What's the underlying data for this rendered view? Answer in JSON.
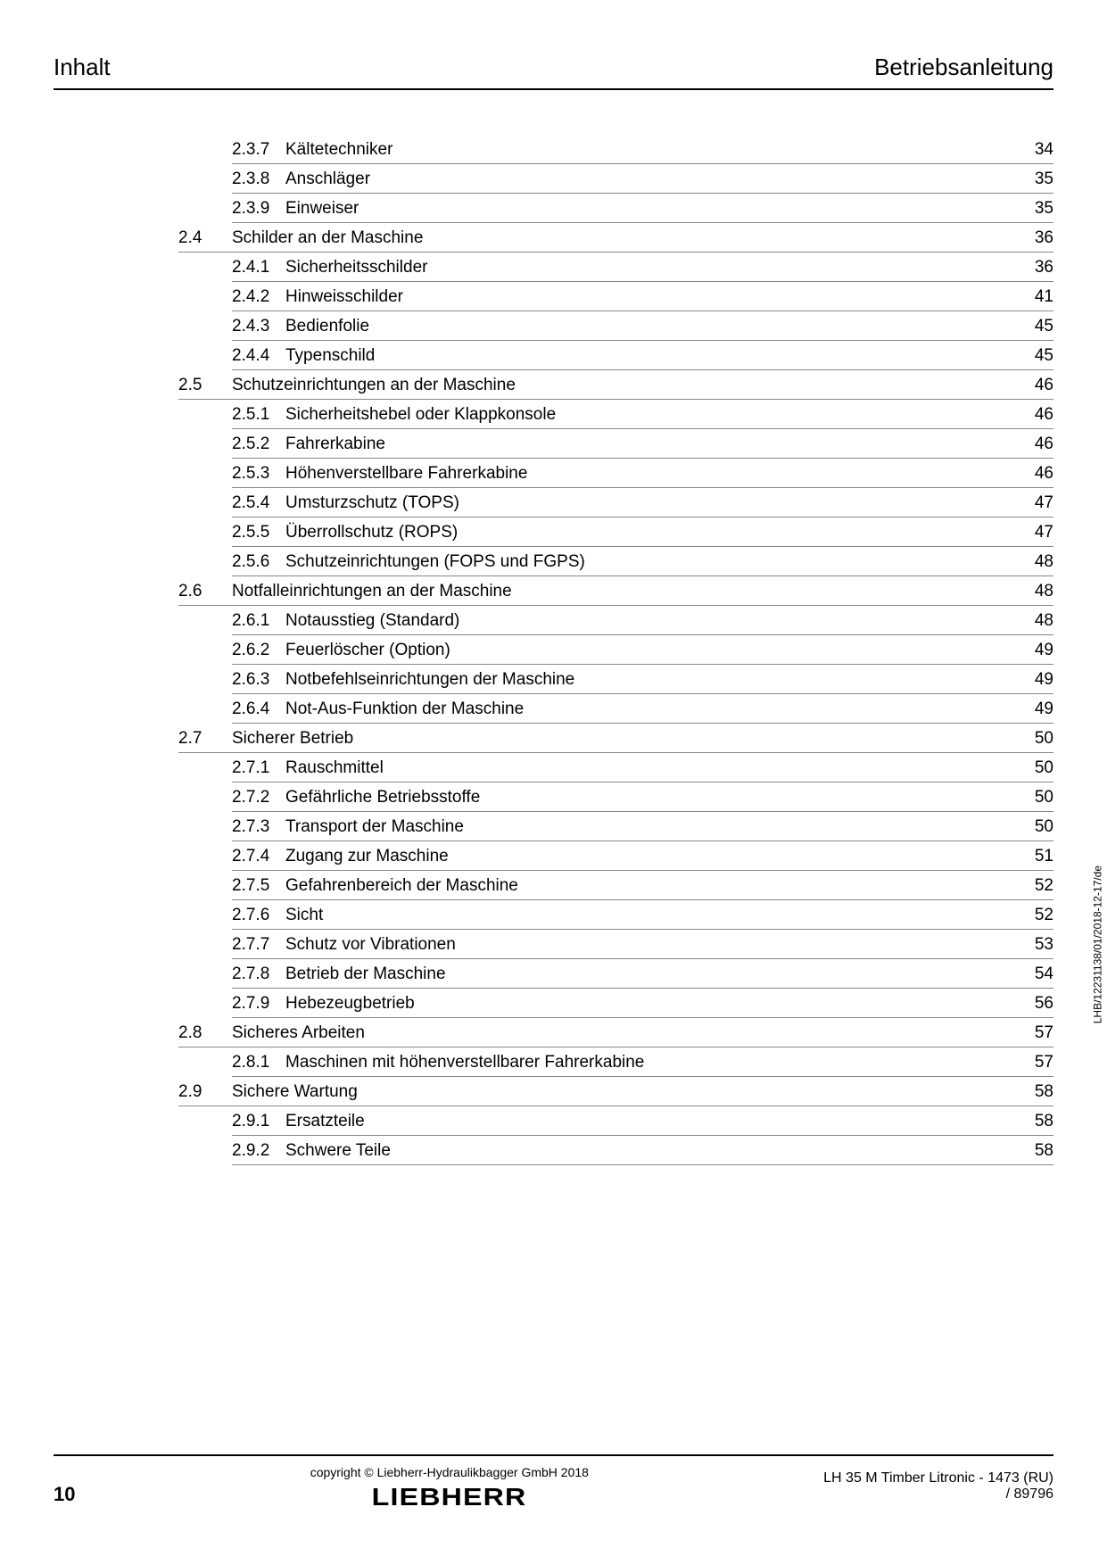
{
  "header": {
    "left": "Inhalt",
    "right": "Betriebsanleitung"
  },
  "toc": [
    {
      "type": "sub",
      "num": "2.3.7",
      "title": "Kältetechniker",
      "page": "34"
    },
    {
      "type": "sub",
      "num": "2.3.8",
      "title": "Anschläger",
      "page": "35"
    },
    {
      "type": "sub",
      "num": "2.3.9",
      "title": "Einweiser",
      "page": "35"
    },
    {
      "type": "sec",
      "num": "2.4",
      "title": "Schilder an der Maschine",
      "page": "36"
    },
    {
      "type": "sub",
      "num": "2.4.1",
      "title": "Sicherheitsschilder",
      "page": "36"
    },
    {
      "type": "sub",
      "num": "2.4.2",
      "title": "Hinweisschilder",
      "page": "41"
    },
    {
      "type": "sub",
      "num": "2.4.3",
      "title": "Bedienfolie",
      "page": "45"
    },
    {
      "type": "sub",
      "num": "2.4.4",
      "title": "Typenschild",
      "page": "45"
    },
    {
      "type": "sec",
      "num": "2.5",
      "title": "Schutzeinrichtungen an der Maschine",
      "page": "46"
    },
    {
      "type": "sub",
      "num": "2.5.1",
      "title": "Sicherheitshebel oder Klappkonsole",
      "page": "46"
    },
    {
      "type": "sub",
      "num": "2.5.2",
      "title": "Fahrerkabine",
      "page": "46"
    },
    {
      "type": "sub",
      "num": "2.5.3",
      "title": "Höhenverstellbare Fahrerkabine",
      "page": "46"
    },
    {
      "type": "sub",
      "num": "2.5.4",
      "title": "Umsturzschutz (TOPS)",
      "page": "47"
    },
    {
      "type": "sub",
      "num": "2.5.5",
      "title": "Überrollschutz (ROPS)",
      "page": "47"
    },
    {
      "type": "sub",
      "num": "2.5.6",
      "title": "Schutzeinrichtungen (FOPS und FGPS)",
      "page": "48"
    },
    {
      "type": "sec",
      "num": "2.6",
      "title": "Notfalleinrichtungen an der Maschine",
      "page": "48"
    },
    {
      "type": "sub",
      "num": "2.6.1",
      "title": "Notausstieg (Standard)",
      "page": "48"
    },
    {
      "type": "sub",
      "num": "2.6.2",
      "title": "Feuerlöscher (Option)",
      "page": "49"
    },
    {
      "type": "sub",
      "num": "2.6.3",
      "title": "Notbefehlseinrichtungen der Maschine",
      "page": "49"
    },
    {
      "type": "sub",
      "num": "2.6.4",
      "title": "Not-Aus-Funktion der Maschine",
      "page": "49"
    },
    {
      "type": "sec",
      "num": "2.7",
      "title": "Sicherer Betrieb",
      "page": "50"
    },
    {
      "type": "sub",
      "num": "2.7.1",
      "title": "Rauschmittel",
      "page": "50"
    },
    {
      "type": "sub",
      "num": "2.7.2",
      "title": "Gefährliche Betriebsstoffe",
      "page": "50"
    },
    {
      "type": "sub",
      "num": "2.7.3",
      "title": "Transport der Maschine",
      "page": "50"
    },
    {
      "type": "sub",
      "num": "2.7.4",
      "title": "Zugang zur Maschine",
      "page": "51"
    },
    {
      "type": "sub",
      "num": "2.7.5",
      "title": "Gefahrenbereich der Maschine",
      "page": "52"
    },
    {
      "type": "sub",
      "num": "2.7.6",
      "title": "Sicht",
      "page": "52"
    },
    {
      "type": "sub",
      "num": "2.7.7",
      "title": "Schutz vor Vibrationen",
      "page": "53"
    },
    {
      "type": "sub",
      "num": "2.7.8",
      "title": "Betrieb der Maschine",
      "page": "54"
    },
    {
      "type": "sub",
      "num": "2.7.9",
      "title": "Hebezeugbetrieb",
      "page": "56"
    },
    {
      "type": "sec",
      "num": "2.8",
      "title": "Sicheres Arbeiten",
      "page": "57"
    },
    {
      "type": "sub",
      "num": "2.8.1",
      "title": "Maschinen mit höhenverstellbarer Fahrerkabine",
      "page": "57"
    },
    {
      "type": "sec",
      "num": "2.9",
      "title": "Sichere Wartung",
      "page": "58"
    },
    {
      "type": "sub",
      "num": "2.9.1",
      "title": "Ersatzteile",
      "page": "58"
    },
    {
      "type": "sub",
      "num": "2.9.2",
      "title": "Schwere Teile",
      "page": "58"
    }
  ],
  "footer": {
    "page_number": "10",
    "copyright": "copyright © Liebherr-Hydraulikbagger GmbH 2018",
    "logo": "LIEBHERR",
    "right_line1": "LH 35 M Timber Litronic  - 1473 (RU)",
    "right_line2": "/ 89796"
  },
  "side_text": "LHB/12231138/01/2018-12-17/de"
}
